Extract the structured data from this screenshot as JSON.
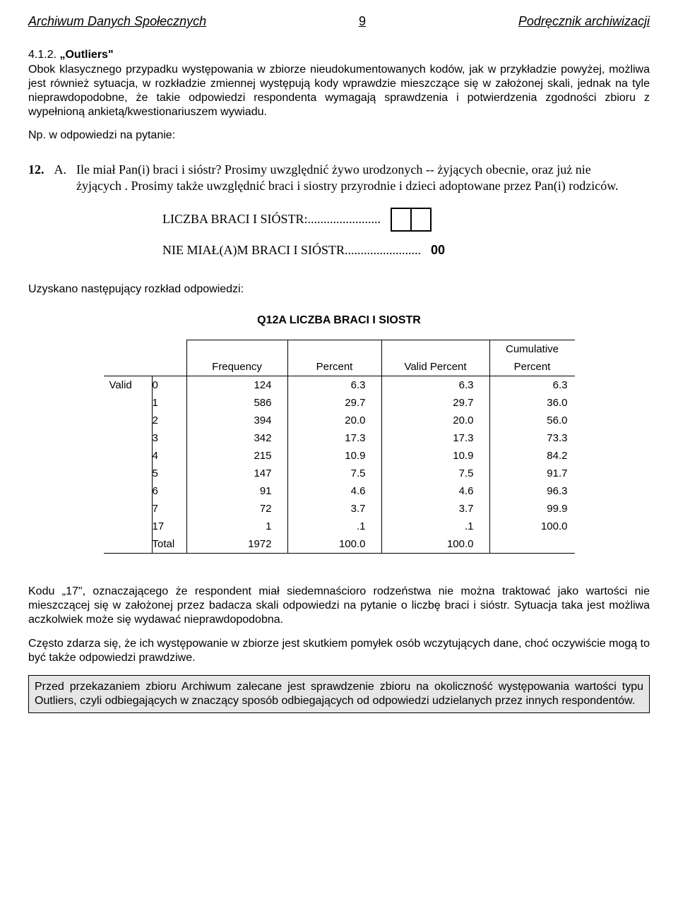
{
  "header": {
    "left": "Archiwum Danych Społecznych",
    "page_number": "9",
    "right": "Podręcznik archiwizacji"
  },
  "section": {
    "number": "4.1.2.",
    "title": "„Outliers\"",
    "body": "Obok klasycznego przypadku występowania w zbiorze nieudokumentowanych kodów, jak w przykładzie powyżej, możliwa jest również sytuacja, w rozkładzie zmiennej występują kody wprawdzie mieszczące się w założonej skali, jednak na tyle nieprawdopodobne, że takie odpowiedzi respondenta wymagają sprawdzenia i potwierdzenia zgodności zbioru z wypełnioną ankietą/kwestionariuszem wywiadu.",
    "np_line": "Np. w odpowiedzi na pytanie:"
  },
  "question": {
    "number_label": "12.",
    "letter_label": "A.",
    "text": "Ile miał Pan(i) braci i sióstr? Prosimy uwzględnić żywo urodzonych -- żyjących obecnie, oraz już nie żyjących . Prosimy także uwzględnić braci i siostry przyrodnie i dzieci adoptowane przez Pan(i) rodziców.",
    "count_label": "LICZBA BRACI I SIÓSTR:.......................",
    "none_label": "NIE MIAŁ(A)M BRACI I SIÓSTR........................",
    "none_code": "00"
  },
  "dist_intro": "Uzyskano następujący rozkład odpowiedzi:",
  "table": {
    "title": "Q12A  LICZBA BRACI I SIOSTR",
    "columns": {
      "valid_label": "Valid",
      "frequency": "Frequency",
      "percent": "Percent",
      "valid_percent": "Valid Percent",
      "cumulative_top": "Cumulative",
      "cumulative_bottom": "Percent"
    },
    "rows": [
      {
        "cat": "0",
        "freq": "124",
        "pct": "6.3",
        "vpct": "6.3",
        "cpct": "6.3"
      },
      {
        "cat": "1",
        "freq": "586",
        "pct": "29.7",
        "vpct": "29.7",
        "cpct": "36.0"
      },
      {
        "cat": "2",
        "freq": "394",
        "pct": "20.0",
        "vpct": "20.0",
        "cpct": "56.0"
      },
      {
        "cat": "3",
        "freq": "342",
        "pct": "17.3",
        "vpct": "17.3",
        "cpct": "73.3"
      },
      {
        "cat": "4",
        "freq": "215",
        "pct": "10.9",
        "vpct": "10.9",
        "cpct": "84.2"
      },
      {
        "cat": "5",
        "freq": "147",
        "pct": "7.5",
        "vpct": "7.5",
        "cpct": "91.7"
      },
      {
        "cat": "6",
        "freq": "91",
        "pct": "4.6",
        "vpct": "4.6",
        "cpct": "96.3"
      },
      {
        "cat": "7",
        "freq": "72",
        "pct": "3.7",
        "vpct": "3.7",
        "cpct": "99.9"
      },
      {
        "cat": "17",
        "freq": "1",
        "pct": ".1",
        "vpct": ".1",
        "cpct": "100.0"
      },
      {
        "cat": "Total",
        "freq": "1972",
        "pct": "100.0",
        "vpct": "100.0",
        "cpct": ""
      }
    ]
  },
  "footer": {
    "para1": "Kodu „17\", oznaczającego że respondent miał siedemnaścioro rodzeństwa nie można traktować jako wartości nie mieszczącej się w założonej przez badacza skali odpowiedzi na pytanie o liczbę braci i sióstr. Sytuacja taka jest możliwa aczkolwiek może się wydawać nieprawdopodobna.",
    "para2": "Często zdarza się, że ich występowanie w zbiorze jest skutkiem pomyłek osób wczytujących dane, choć oczywiście mogą to być także odpowiedzi prawdziwe.",
    "callout": "Przed przekazaniem zbioru Archiwum zalecane jest sprawdzenie zbioru na okoliczność występowania wartości typu Outliers, czyli odbiegających w znaczący sposób odbiegających od odpowiedzi udzielanych przez innych respondentów."
  }
}
